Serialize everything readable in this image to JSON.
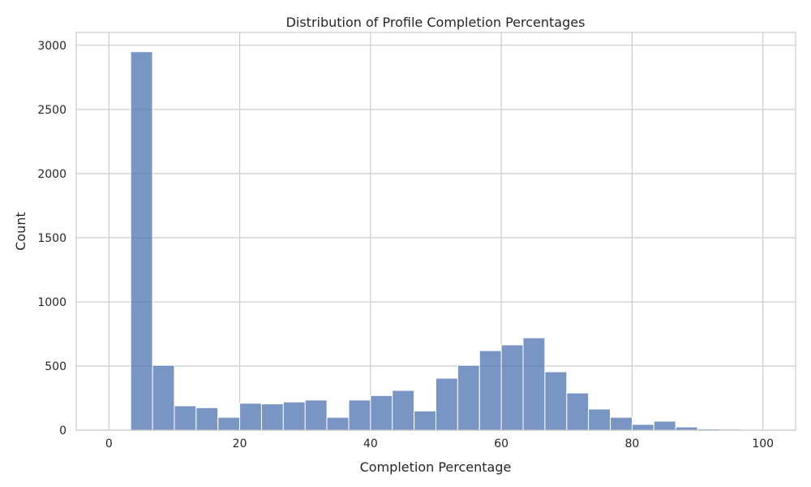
{
  "chart_data": {
    "type": "bar",
    "title": "Distribution of Profile Completion Percentages",
    "xlabel": "Completion Percentage",
    "ylabel": "Count",
    "xlim": [
      -5,
      105
    ],
    "ylim": [
      0,
      3100
    ],
    "xticks": [
      0,
      20,
      40,
      60,
      80,
      100
    ],
    "yticks": [
      0,
      500,
      1000,
      1500,
      2000,
      2500,
      3000
    ],
    "grid": true,
    "bin_width": 3.333,
    "bins_start": [
      3.33,
      6.67,
      10.0,
      13.33,
      16.67,
      20.0,
      23.33,
      26.67,
      30.0,
      33.33,
      36.67,
      40.0,
      43.33,
      46.67,
      50.0,
      53.33,
      56.67,
      60.0,
      63.33,
      66.67,
      70.0,
      73.33,
      76.67,
      80.0,
      83.33,
      86.67,
      90.0,
      93.33,
      96.67
    ],
    "values": [
      2950,
      505,
      190,
      175,
      100,
      210,
      205,
      220,
      235,
      100,
      235,
      270,
      310,
      150,
      405,
      505,
      620,
      665,
      720,
      455,
      290,
      165,
      100,
      45,
      70,
      25,
      10,
      8,
      5
    ],
    "color": "#4c72b0"
  }
}
